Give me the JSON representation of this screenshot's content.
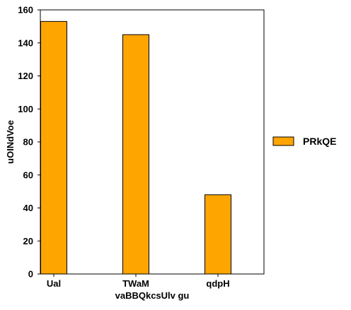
{
  "chart_data": {
    "type": "bar",
    "title": "",
    "xlabel": "vaBBQkcsUlv gu",
    "ylabel": "uOINdVoe",
    "categories": [
      "Ual",
      "TWaM",
      "qdpH"
    ],
    "category_label_weights": [
      "bold",
      "normal",
      "normal"
    ],
    "series": [
      {
        "name": "PRkQE",
        "values": [
          153,
          145,
          48
        ],
        "color": "#FFA500"
      }
    ],
    "ylim": [
      0,
      160
    ],
    "yticks": [
      0,
      20,
      40,
      60,
      80,
      100,
      120,
      140,
      160
    ],
    "grid": false,
    "legend_position": "right"
  }
}
